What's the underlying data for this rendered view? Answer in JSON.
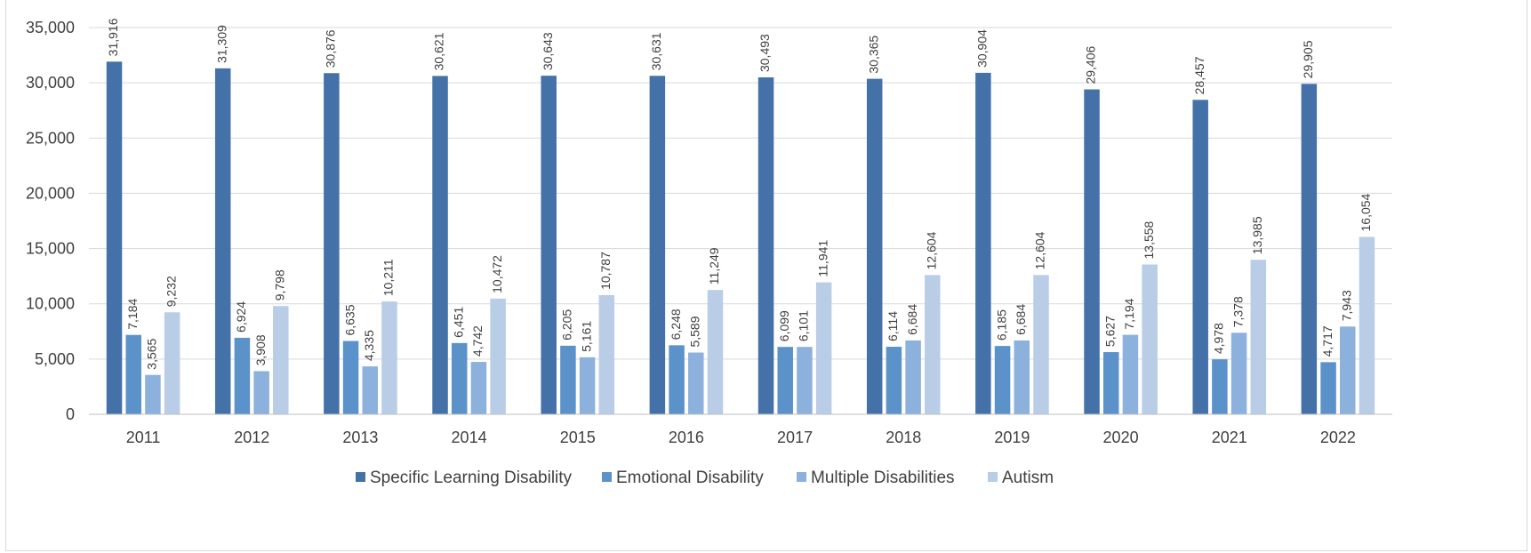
{
  "chart_data": {
    "type": "bar",
    "title": "",
    "xlabel": "",
    "ylabel": "",
    "categories": [
      "2011",
      "2012",
      "2013",
      "2014",
      "2015",
      "2016",
      "2017",
      "2018",
      "2019",
      "2020",
      "2021",
      "2022"
    ],
    "ylim": [
      0,
      35000
    ],
    "yticks": [
      0,
      5000,
      10000,
      15000,
      20000,
      25000,
      30000,
      35000
    ],
    "ytick_labels": [
      "0",
      "5,000",
      "10,000",
      "15,000",
      "20,000",
      "25,000",
      "30,000",
      "35,000"
    ],
    "grid": true,
    "legend_position": "bottom",
    "series": [
      {
        "name": "Specific Learning Disability",
        "color": "#4472a8",
        "values": [
          31916,
          31309,
          30876,
          30621,
          30643,
          30631,
          30493,
          30365,
          30904,
          29406,
          28457,
          29905
        ],
        "labels": [
          "31,916",
          "31,309",
          "30,876",
          "30,621",
          "30,643",
          "30,631",
          "30,493",
          "30,365",
          "30,904",
          "29,406",
          "28,457",
          "29,905"
        ]
      },
      {
        "name": "Emotional Disability",
        "color": "#5b92c9",
        "values": [
          7184,
          6924,
          6635,
          6451,
          6205,
          6248,
          6099,
          6114,
          6185,
          5627,
          4978,
          4717
        ],
        "labels": [
          "7,184",
          "6,924",
          "6,635",
          "6,451",
          "6,205",
          "6,248",
          "6,099",
          "6,114",
          "6,185",
          "5,627",
          "4,978",
          "4,717"
        ]
      },
      {
        "name": "Multiple Disabilities",
        "color": "#8cb1dc",
        "values": [
          3565,
          3908,
          4335,
          4742,
          5161,
          5589,
          6101,
          6684,
          6684,
          7194,
          7378,
          7943
        ],
        "labels": [
          "3,565",
          "3,908",
          "4,335",
          "4,742",
          "5,161",
          "5,589",
          "6,101",
          "6,684",
          "6,684",
          "7,194",
          "7,378",
          "7,943"
        ]
      },
      {
        "name": "Autism",
        "color": "#b9cde6",
        "values": [
          9232,
          9798,
          10211,
          10472,
          10787,
          11249,
          11941,
          12604,
          12604,
          13558,
          13985,
          16054
        ],
        "labels": [
          "9,232",
          "9,798",
          "10,211",
          "10,472",
          "10,787",
          "11,249",
          "11,941",
          "12,604",
          "12,604",
          "13,558",
          "13,985",
          "16,054"
        ]
      }
    ]
  }
}
